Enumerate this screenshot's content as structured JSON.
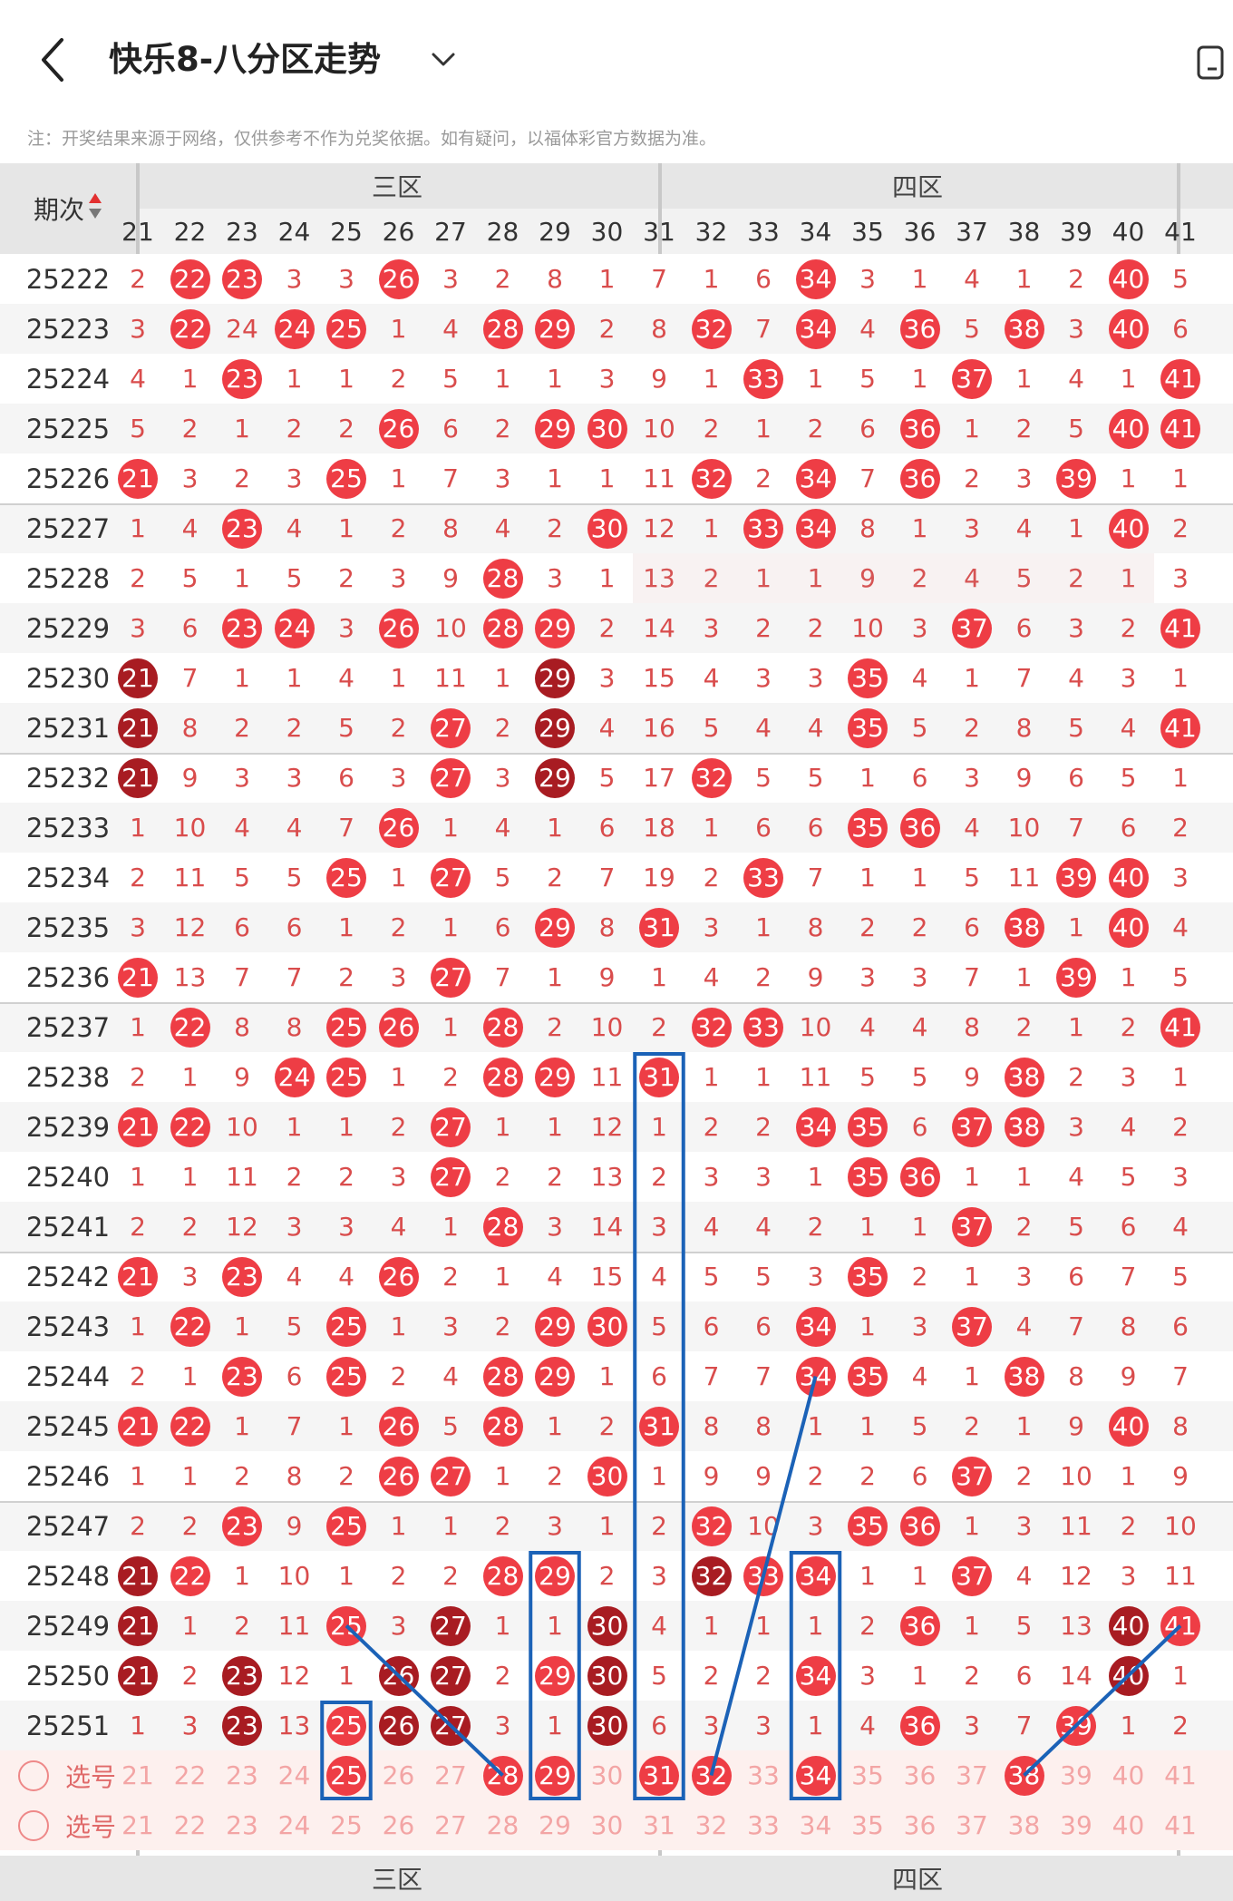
{
  "header": {
    "title": "快乐8-八分区走势",
    "notice": "注：开奖结果来源于网络，仅供参考不作为兑奖依据。如有疑问，以福体彩官方数据为准。"
  },
  "table": {
    "issue_label": "期次",
    "zones": [
      "三区",
      "四区"
    ],
    "columns": [
      21,
      22,
      23,
      24,
      25,
      26,
      27,
      28,
      29,
      30,
      31,
      32,
      33,
      34,
      35,
      36,
      37,
      38,
      39,
      40,
      41
    ],
    "select_label": "选号",
    "rows": [
      {
        "issue": "25222",
        "cells": [
          "2",
          "22",
          "23",
          "3",
          "3",
          "26",
          "3",
          "2",
          "8",
          "1",
          "7",
          "1",
          "6",
          "34",
          "3",
          "1",
          "4",
          "1",
          "2",
          "40",
          "5"
        ]
      },
      {
        "issue": "25223",
        "cells": [
          "3",
          "22",
          "24",
          "24",
          "25",
          "1",
          "4",
          "28",
          "29",
          "2",
          "8",
          "32",
          "7",
          "34",
          "4",
          "36",
          "5",
          "38",
          "3",
          "40",
          "6"
        ]
      },
      {
        "issue": "25224",
        "cells": [
          "4",
          "1",
          "23",
          "1",
          "1",
          "2",
          "5",
          "1",
          "1",
          "3",
          "9",
          "1",
          "33",
          "1",
          "5",
          "1",
          "37",
          "1",
          "4",
          "1",
          "41"
        ]
      },
      {
        "issue": "25225",
        "cells": [
          "5",
          "2",
          "1",
          "2",
          "2",
          "26",
          "6",
          "2",
          "29",
          "30",
          "10",
          "2",
          "1",
          "2",
          "6",
          "36",
          "1",
          "2",
          "5",
          "40",
          "41"
        ]
      },
      {
        "issue": "25226",
        "cells": [
          "21",
          "3",
          "2",
          "3",
          "25",
          "1",
          "7",
          "3",
          "1",
          "1",
          "11",
          "32",
          "2",
          "34",
          "7",
          "36",
          "2",
          "3",
          "39",
          "1",
          "1"
        ]
      },
      {
        "issue": "25227",
        "cells": [
          "1",
          "4",
          "23",
          "4",
          "1",
          "2",
          "8",
          "4",
          "2",
          "30",
          "12",
          "1",
          "33",
          "34",
          "8",
          "1",
          "3",
          "4",
          "1",
          "40",
          "2"
        ]
      },
      {
        "issue": "25228",
        "cells": [
          "2",
          "5",
          "1",
          "5",
          "2",
          "3",
          "9",
          "28",
          "3",
          "1",
          "13",
          "2",
          "1",
          "1",
          "9",
          "2",
          "4",
          "5",
          "2",
          "1",
          "3"
        ]
      },
      {
        "issue": "25229",
        "cells": [
          "3",
          "6",
          "23",
          "24",
          "3",
          "26",
          "10",
          "28",
          "29",
          "2",
          "14",
          "3",
          "2",
          "2",
          "10",
          "3",
          "37",
          "6",
          "3",
          "2",
          "41"
        ]
      },
      {
        "issue": "25230",
        "cells": [
          "21",
          "7",
          "1",
          "1",
          "4",
          "1",
          "11",
          "1",
          "29",
          "3",
          "15",
          "4",
          "3",
          "3",
          "35",
          "4",
          "1",
          "7",
          "4",
          "3",
          "1"
        ]
      },
      {
        "issue": "25231",
        "cells": [
          "21",
          "8",
          "2",
          "2",
          "5",
          "2",
          "27",
          "2",
          "29",
          "4",
          "16",
          "5",
          "4",
          "4",
          "35",
          "5",
          "2",
          "8",
          "5",
          "4",
          "41"
        ]
      },
      {
        "issue": "25232",
        "cells": [
          "21",
          "9",
          "3",
          "3",
          "6",
          "3",
          "27",
          "3",
          "29",
          "5",
          "17",
          "32",
          "5",
          "5",
          "1",
          "6",
          "3",
          "9",
          "6",
          "5",
          "1"
        ]
      },
      {
        "issue": "25233",
        "cells": [
          "1",
          "10",
          "4",
          "4",
          "7",
          "26",
          "1",
          "4",
          "1",
          "6",
          "18",
          "1",
          "6",
          "6",
          "35",
          "36",
          "4",
          "10",
          "7",
          "6",
          "2"
        ]
      },
      {
        "issue": "25234",
        "cells": [
          "2",
          "11",
          "5",
          "5",
          "25",
          "1",
          "27",
          "5",
          "2",
          "7",
          "19",
          "2",
          "33",
          "7",
          "1",
          "1",
          "5",
          "11",
          "39",
          "40",
          "3"
        ]
      },
      {
        "issue": "25235",
        "cells": [
          "3",
          "12",
          "6",
          "6",
          "1",
          "2",
          "1",
          "6",
          "29",
          "8",
          "31",
          "3",
          "1",
          "8",
          "2",
          "2",
          "6",
          "38",
          "1",
          "40",
          "4"
        ]
      },
      {
        "issue": "25236",
        "cells": [
          "21",
          "13",
          "7",
          "7",
          "2",
          "3",
          "27",
          "7",
          "1",
          "9",
          "1",
          "4",
          "2",
          "9",
          "3",
          "3",
          "7",
          "1",
          "39",
          "1",
          "5"
        ]
      },
      {
        "issue": "25237",
        "cells": [
          "1",
          "22",
          "8",
          "8",
          "25",
          "26",
          "1",
          "28",
          "2",
          "10",
          "2",
          "32",
          "33",
          "10",
          "4",
          "4",
          "8",
          "2",
          "1",
          "2",
          "41"
        ]
      },
      {
        "issue": "25238",
        "cells": [
          "2",
          "1",
          "9",
          "24",
          "25",
          "1",
          "2",
          "28",
          "29",
          "11",
          "31",
          "1",
          "1",
          "11",
          "5",
          "5",
          "9",
          "38",
          "2",
          "3",
          "1"
        ]
      },
      {
        "issue": "25239",
        "cells": [
          "21",
          "22",
          "10",
          "1",
          "1",
          "2",
          "27",
          "1",
          "1",
          "12",
          "1",
          "2",
          "2",
          "34",
          "35",
          "6",
          "37",
          "38",
          "3",
          "4",
          "2"
        ]
      },
      {
        "issue": "25240",
        "cells": [
          "1",
          "1",
          "11",
          "2",
          "2",
          "3",
          "27",
          "2",
          "2",
          "13",
          "2",
          "3",
          "3",
          "1",
          "35",
          "36",
          "1",
          "1",
          "4",
          "5",
          "3"
        ]
      },
      {
        "issue": "25241",
        "cells": [
          "2",
          "2",
          "12",
          "3",
          "3",
          "4",
          "1",
          "28",
          "3",
          "14",
          "3",
          "4",
          "4",
          "2",
          "1",
          "1",
          "37",
          "2",
          "5",
          "6",
          "4"
        ]
      },
      {
        "issue": "25242",
        "cells": [
          "21",
          "3",
          "23",
          "4",
          "4",
          "26",
          "2",
          "1",
          "4",
          "15",
          "4",
          "5",
          "5",
          "3",
          "35",
          "2",
          "1",
          "3",
          "6",
          "7",
          "5"
        ]
      },
      {
        "issue": "25243",
        "cells": [
          "1",
          "22",
          "1",
          "5",
          "25",
          "1",
          "3",
          "2",
          "29",
          "30",
          "5",
          "6",
          "6",
          "34",
          "1",
          "3",
          "37",
          "4",
          "7",
          "8",
          "6"
        ]
      },
      {
        "issue": "25244",
        "cells": [
          "2",
          "1",
          "23",
          "6",
          "25",
          "2",
          "4",
          "28",
          "29",
          "1",
          "6",
          "7",
          "7",
          "34",
          "35",
          "4",
          "1",
          "38",
          "8",
          "9",
          "7"
        ]
      },
      {
        "issue": "25245",
        "cells": [
          "21",
          "22",
          "1",
          "7",
          "1",
          "26",
          "5",
          "28",
          "1",
          "2",
          "31",
          "8",
          "8",
          "1",
          "1",
          "5",
          "2",
          "1",
          "9",
          "40",
          "8"
        ]
      },
      {
        "issue": "25246",
        "cells": [
          "1",
          "1",
          "2",
          "8",
          "2",
          "26",
          "27",
          "1",
          "2",
          "30",
          "1",
          "9",
          "9",
          "2",
          "2",
          "6",
          "37",
          "2",
          "10",
          "1",
          "9"
        ]
      },
      {
        "issue": "25247",
        "cells": [
          "2",
          "2",
          "23",
          "9",
          "25",
          "1",
          "1",
          "2",
          "3",
          "1",
          "2",
          "32",
          "10",
          "3",
          "35",
          "36",
          "1",
          "3",
          "11",
          "2",
          "10"
        ]
      },
      {
        "issue": "25248",
        "cells": [
          "21",
          "22",
          "1",
          "10",
          "1",
          "2",
          "2",
          "28",
          "29",
          "2",
          "3",
          "32",
          "33",
          "34",
          "1",
          "1",
          "37",
          "4",
          "12",
          "3",
          "11"
        ]
      },
      {
        "issue": "25249",
        "cells": [
          "21",
          "1",
          "2",
          "11",
          "25",
          "3",
          "27",
          "1",
          "1",
          "30",
          "4",
          "1",
          "1",
          "1",
          "2",
          "36",
          "1",
          "5",
          "13",
          "40",
          "41"
        ]
      },
      {
        "issue": "25250",
        "cells": [
          "21",
          "2",
          "23",
          "12",
          "1",
          "26",
          "27",
          "2",
          "29",
          "30",
          "5",
          "2",
          "2",
          "34",
          "3",
          "1",
          "2",
          "6",
          "14",
          "40",
          "1"
        ]
      },
      {
        "issue": "25251",
        "cells": [
          "1",
          "3",
          "23",
          "13",
          "25",
          "26",
          "27",
          "3",
          "1",
          "30",
          "6",
          "3",
          "3",
          "1",
          "4",
          "36",
          "3",
          "7",
          "39",
          "1",
          "2"
        ]
      }
    ]
  },
  "colors": {
    "ball_red": "#ee3d45",
    "ball_dark": "#a81c22",
    "miss_text": "#d94c4c",
    "header_bg": "#e6e6e6",
    "highlight_box": "#1b62b7"
  }
}
